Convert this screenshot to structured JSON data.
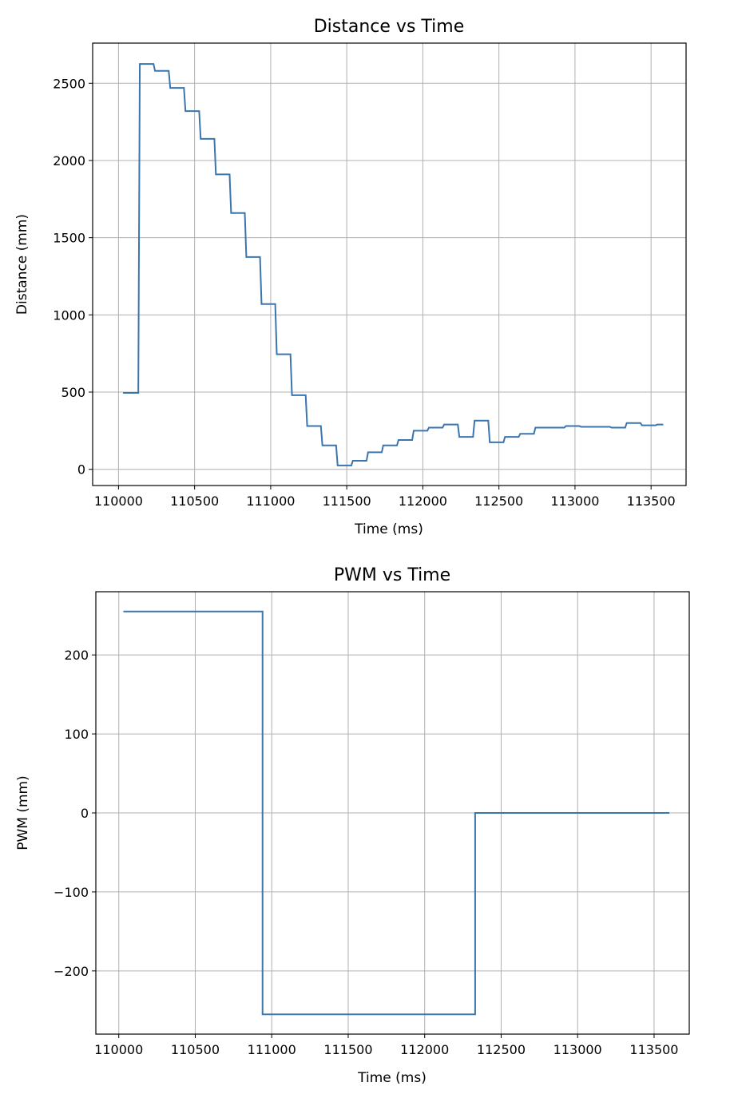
{
  "colors": {
    "series": "#3a75b0",
    "grid": "#b0b0b0",
    "frame": "#000000"
  },
  "chart_data": [
    {
      "type": "line",
      "title": "Distance vs Time",
      "xlabel": "Time (ms)",
      "ylabel": "Distance (mm)",
      "xlim": [
        109830,
        113730
      ],
      "ylim": [
        -105,
        2760
      ],
      "grid": true,
      "step": true,
      "xticks": [
        110000,
        110500,
        111000,
        111500,
        112000,
        112500,
        113000,
        113500
      ],
      "yticks": [
        0,
        500,
        1000,
        1500,
        2000,
        2500
      ],
      "series": [
        {
          "points": [
            [
              110030,
              495
            ],
            [
              110130,
              495
            ],
            [
              110140,
              2625
            ],
            [
              110230,
              2625
            ],
            [
              110240,
              2580
            ],
            [
              110330,
              2580
            ],
            [
              110340,
              2470
            ],
            [
              110430,
              2470
            ],
            [
              110440,
              2320
            ],
            [
              110530,
              2320
            ],
            [
              110540,
              2140
            ],
            [
              110630,
              2140
            ],
            [
              110640,
              1910
            ],
            [
              110730,
              1910
            ],
            [
              110740,
              1660
            ],
            [
              110830,
              1660
            ],
            [
              110840,
              1375
            ],
            [
              110930,
              1375
            ],
            [
              110940,
              1070
            ],
            [
              111030,
              1070
            ],
            [
              111040,
              745
            ],
            [
              111130,
              745
            ],
            [
              111140,
              480
            ],
            [
              111230,
              480
            ],
            [
              111240,
              280
            ],
            [
              111330,
              280
            ],
            [
              111340,
              155
            ],
            [
              111430,
              155
            ],
            [
              111440,
              25
            ],
            [
              111530,
              25
            ],
            [
              111540,
              55
            ],
            [
              111630,
              55
            ],
            [
              111640,
              110
            ],
            [
              111730,
              110
            ],
            [
              111740,
              155
            ],
            [
              111830,
              155
            ],
            [
              111840,
              190
            ],
            [
              111930,
              190
            ],
            [
              111940,
              250
            ],
            [
              112030,
              250
            ],
            [
              112040,
              270
            ],
            [
              112130,
              270
            ],
            [
              112140,
              290
            ],
            [
              112230,
              290
            ],
            [
              112240,
              210
            ],
            [
              112330,
              210
            ],
            [
              112340,
              315
            ],
            [
              112430,
              315
            ],
            [
              112440,
              175
            ],
            [
              112530,
              175
            ],
            [
              112540,
              210
            ],
            [
              112630,
              210
            ],
            [
              112640,
              230
            ],
            [
              112730,
              230
            ],
            [
              112740,
              270
            ],
            [
              112930,
              270
            ],
            [
              112940,
              280
            ],
            [
              113030,
              280
            ],
            [
              113040,
              275
            ],
            [
              113230,
              275
            ],
            [
              113240,
              270
            ],
            [
              113330,
              270
            ],
            [
              113340,
              300
            ],
            [
              113430,
              300
            ],
            [
              113440,
              285
            ],
            [
              113530,
              285
            ],
            [
              113540,
              290
            ],
            [
              113580,
              290
            ]
          ]
        }
      ]
    },
    {
      "type": "line",
      "title": "PWM vs Time",
      "xlabel": "Time (ms)",
      "ylabel": "PWM (mm)",
      "xlim": [
        109850,
        113730
      ],
      "ylim": [
        -280,
        280
      ],
      "grid": true,
      "step": true,
      "xticks": [
        110000,
        110500,
        111000,
        111500,
        112000,
        112500,
        113000,
        113500
      ],
      "yticks": [
        -200,
        -100,
        0,
        100,
        200
      ],
      "yticklabels": [
        "−200",
        "−100",
        "0",
        "100",
        "200"
      ],
      "series": [
        {
          "points": [
            [
              110030,
              255
            ],
            [
              110940,
              255
            ],
            [
              110940,
              -255
            ],
            [
              112330,
              -255
            ],
            [
              112330,
              0
            ],
            [
              113600,
              0
            ]
          ]
        }
      ]
    }
  ]
}
